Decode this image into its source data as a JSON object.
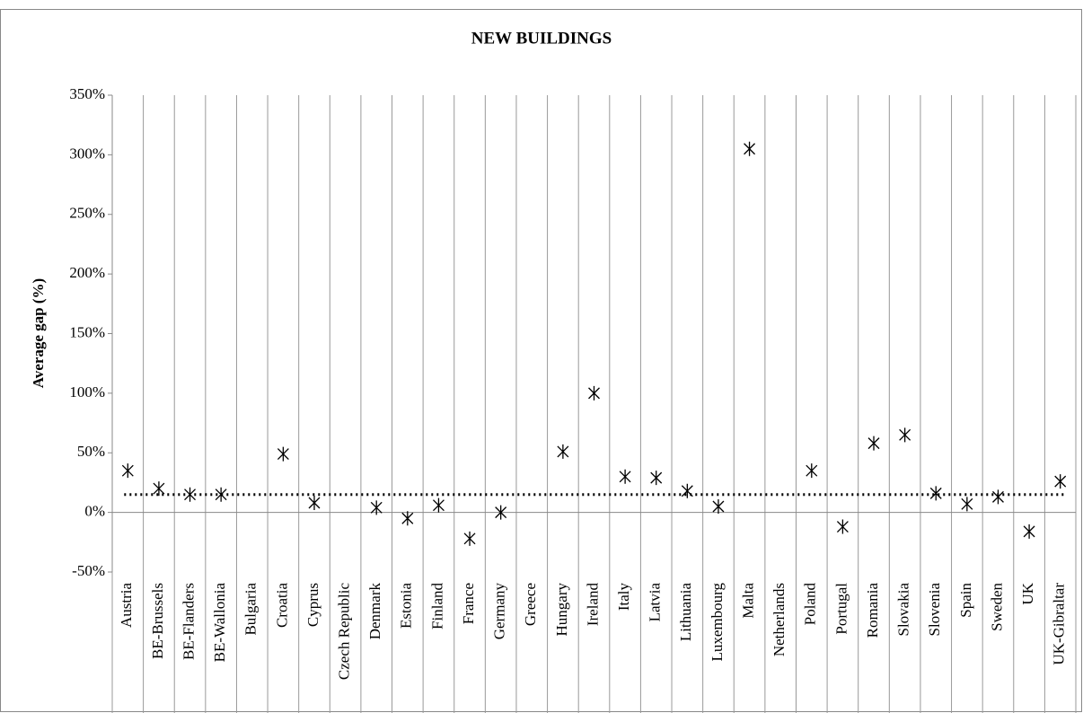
{
  "chart_data": {
    "type": "scatter",
    "title": "NEW BUILDINGS",
    "y_label": "Average gap (%)",
    "categories": [
      "Austria",
      "BE-Brussels",
      "BE-Flanders",
      "BE-Wallonia",
      "Bulgaria",
      "Croatia",
      "Cyprus",
      "Czech Republic",
      "Denmark",
      "Estonia",
      "Finland",
      "France",
      "Germany",
      "Greece",
      "Hungary",
      "Ireland",
      "Italy",
      "Latvia",
      "Lithuania",
      "Luxembourg",
      "Malta",
      "Netherlands",
      "Poland",
      "Portugal",
      "Romania",
      "Slovakia",
      "Slovenia",
      "Spain",
      "Sweden",
      "UK",
      "UK-Gibraltar"
    ],
    "values": [
      35,
      20,
      15,
      15,
      null,
      49,
      8,
      null,
      4,
      -5,
      6,
      -22,
      0,
      null,
      51,
      100,
      30,
      29,
      18,
      5,
      305,
      null,
      35,
      -12,
      58,
      65,
      16,
      7,
      13,
      -16,
      26
    ],
    "reference_value": 15,
    "color": "#000000",
    "ylim": [
      -50,
      350
    ],
    "yticks": [
      {
        "value": -50,
        "label": "-50%"
      },
      {
        "value": 0,
        "label": "0%"
      },
      {
        "value": 50,
        "label": "50%"
      },
      {
        "value": 100,
        "label": "100%"
      },
      {
        "value": 150,
        "label": "150%"
      },
      {
        "value": 200,
        "label": "200%"
      },
      {
        "value": 250,
        "label": "250%"
      },
      {
        "value": 300,
        "label": "300%"
      },
      {
        "value": 350,
        "label": "350%"
      }
    ]
  }
}
